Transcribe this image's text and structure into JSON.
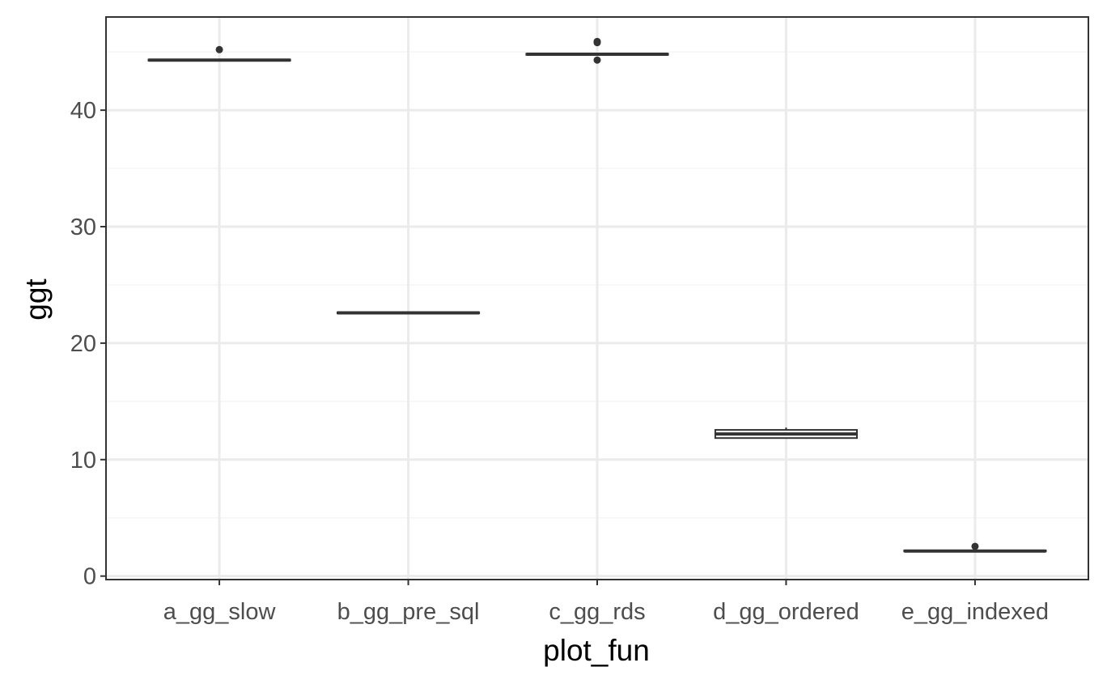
{
  "chart_data": {
    "type": "box",
    "title": "",
    "xlabel": "plot_fun",
    "ylabel": "ggt",
    "ylim": [
      -0.3,
      48
    ],
    "y_ticks": [
      0,
      10,
      20,
      30,
      40
    ],
    "y_tick_labels": [
      "0",
      "10",
      "20",
      "30",
      "40"
    ],
    "grid": true,
    "theme": "bw",
    "categories": [
      "a_gg_slow",
      "b_gg_pre_sql",
      "c_gg_rds",
      "d_gg_ordered",
      "e_gg_indexed"
    ],
    "boxes": [
      {
        "category": "a_gg_slow",
        "min": 44.2,
        "q1": 44.25,
        "median": 44.3,
        "q3": 44.35,
        "max": 44.4,
        "outliers": [
          45.2
        ]
      },
      {
        "category": "b_gg_pre_sql",
        "min": 22.5,
        "q1": 22.55,
        "median": 22.6,
        "q3": 22.65,
        "max": 22.7,
        "outliers": []
      },
      {
        "category": "c_gg_rds",
        "min": 44.7,
        "q1": 44.75,
        "median": 44.8,
        "q3": 44.85,
        "max": 44.9,
        "outliers": [
          45.9,
          45.8,
          44.3
        ]
      },
      {
        "category": "d_gg_ordered",
        "min": 11.8,
        "q1": 11.85,
        "median": 12.2,
        "q3": 12.55,
        "max": 12.75,
        "outliers": []
      },
      {
        "category": "e_gg_indexed",
        "min": 2.1,
        "q1": 2.12,
        "median": 2.15,
        "q3": 2.2,
        "max": 2.25,
        "outliers": [
          2.55
        ]
      }
    ],
    "colors": {
      "panel_background": "#ffffff",
      "panel_border": "#333333",
      "grid_major": "#ebebeb",
      "grid_minor": "#f5f5f5",
      "box_line": "#333333",
      "tick_label": "#4d4d4d",
      "axis_title": "#000000"
    }
  }
}
